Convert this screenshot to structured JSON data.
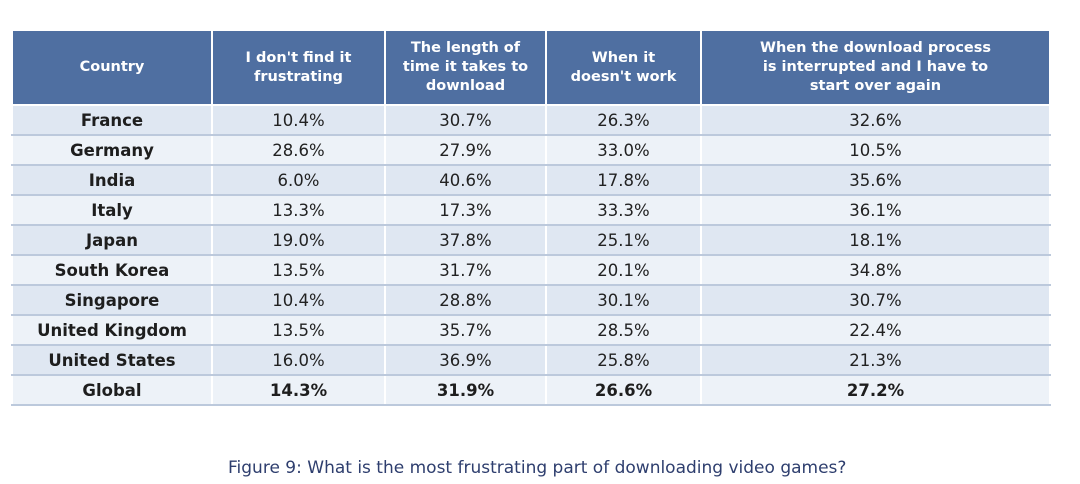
{
  "chart_data": {
    "type": "table",
    "columns": [
      {
        "key": "country",
        "label_lines": [
          "Country"
        ]
      },
      {
        "key": "not_frustrating",
        "label_lines": [
          "I don't find it",
          "frustrating"
        ]
      },
      {
        "key": "download_time",
        "label_lines": [
          "The length of",
          "time it takes to",
          "download"
        ]
      },
      {
        "key": "doesnt_work",
        "label_lines": [
          "When it",
          "doesn't work"
        ]
      },
      {
        "key": "interrupted",
        "label_lines": [
          "When the download process",
          "is interrupted and I have to",
          "start over again"
        ]
      }
    ],
    "rows": [
      {
        "country": "France",
        "values": [
          "10.4%",
          "30.7%",
          "26.3%",
          "32.6%"
        ]
      },
      {
        "country": "Germany",
        "values": [
          "28.6%",
          "27.9%",
          "33.0%",
          "10.5%"
        ]
      },
      {
        "country": "India",
        "values": [
          "6.0%",
          "40.6%",
          "17.8%",
          "35.6%"
        ]
      },
      {
        "country": "Italy",
        "values": [
          "13.3%",
          "17.3%",
          "33.3%",
          "36.1%"
        ]
      },
      {
        "country": "Japan",
        "values": [
          "19.0%",
          "37.8%",
          "25.1%",
          "18.1%"
        ]
      },
      {
        "country": "South Korea",
        "values": [
          "13.5%",
          "31.7%",
          "20.1%",
          "34.8%"
        ]
      },
      {
        "country": "Singapore",
        "values": [
          "10.4%",
          "28.8%",
          "30.1%",
          "30.7%"
        ]
      },
      {
        "country": "United Kingdom",
        "values": [
          "13.5%",
          "35.7%",
          "28.5%",
          "22.4%"
        ]
      },
      {
        "country": "United States",
        "values": [
          "16.0%",
          "36.9%",
          "25.8%",
          "21.3%"
        ]
      },
      {
        "country": "Global",
        "values": [
          "14.3%",
          "31.9%",
          "26.6%",
          "27.2%"
        ]
      }
    ],
    "caption": "Figure 9: What is the most frustrating part of downloading video games?",
    "colors": {
      "header_bg": "#4f6fa1",
      "header_text": "#ffffff",
      "row_odd": "#dfe7f2",
      "row_even": "#edf2f8",
      "caption_text": "#2e3e6e"
    }
  }
}
